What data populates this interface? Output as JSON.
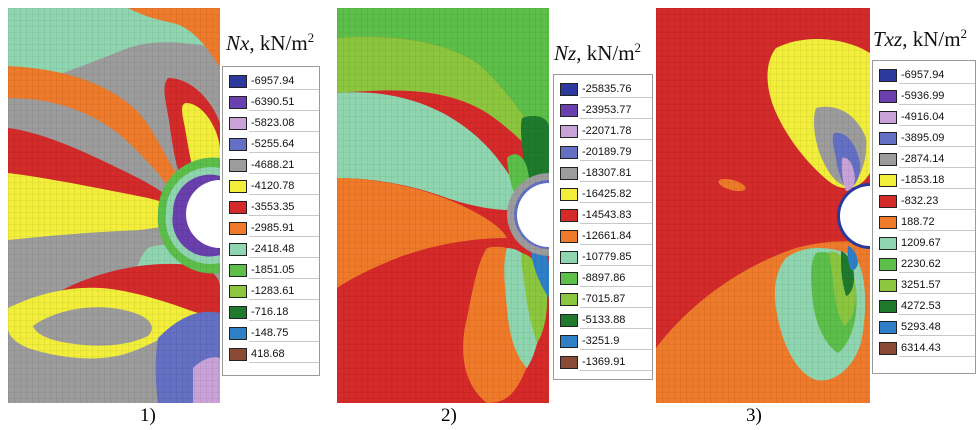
{
  "panels": [
    {
      "caption": "1)",
      "title_symbol": "Nx",
      "title_unit": ", kN/m",
      "title_exp": "2",
      "legend": [
        {
          "value": "-6957.94",
          "color": "#2b3a9c"
        },
        {
          "value": "-6390.51",
          "color": "#6a3fae"
        },
        {
          "value": "-5823.08",
          "color": "#c9a2d8"
        },
        {
          "value": "-5255.64",
          "color": "#6470c4"
        },
        {
          "value": "-4688.21",
          "color": "#9c9c9c"
        },
        {
          "value": "-4120.78",
          "color": "#f2ee3a"
        },
        {
          "value": "-3553.35",
          "color": "#d42a2a"
        },
        {
          "value": "-2985.91",
          "color": "#ee7a2a"
        },
        {
          "value": "-2418.48",
          "color": "#8fd6b0"
        },
        {
          "value": "-1851.05",
          "color": "#5cbf4a"
        },
        {
          "value": "-1283.61",
          "color": "#8cc63f"
        },
        {
          "value": "-716.18",
          "color": "#1f7a2e"
        },
        {
          "value": "-148.75",
          "color": "#2f7fc7"
        },
        {
          "value": "418.68",
          "color": "#8b4a35"
        }
      ]
    },
    {
      "caption": "2)",
      "title_symbol": "Nz",
      "title_unit": ", kN/m",
      "title_exp": "2",
      "legend": [
        {
          "value": "-25835.76",
          "color": "#2b3a9c"
        },
        {
          "value": "-23953.77",
          "color": "#6a3fae"
        },
        {
          "value": "-22071.78",
          "color": "#c9a2d8"
        },
        {
          "value": "-20189.79",
          "color": "#6470c4"
        },
        {
          "value": "-18307.81",
          "color": "#9c9c9c"
        },
        {
          "value": "-16425.82",
          "color": "#f2ee3a"
        },
        {
          "value": "-14543.83",
          "color": "#d42a2a"
        },
        {
          "value": "-12661.84",
          "color": "#ee7a2a"
        },
        {
          "value": "-10779.85",
          "color": "#8fd6b0"
        },
        {
          "value": "-8897.86",
          "color": "#5cbf4a"
        },
        {
          "value": "-7015.87",
          "color": "#8cc63f"
        },
        {
          "value": "-5133.88",
          "color": "#1f7a2e"
        },
        {
          "value": "-3251.9",
          "color": "#2f7fc7"
        },
        {
          "value": "-1369.91",
          "color": "#8b4a35"
        }
      ]
    },
    {
      "caption": "3)",
      "title_symbol": "Txz",
      "title_unit": ", kN/m",
      "title_exp": "2",
      "legend": [
        {
          "value": "-6957.94",
          "color": "#2b3a9c"
        },
        {
          "value": "-5936.99",
          "color": "#6a3fae"
        },
        {
          "value": "-4916.04",
          "color": "#c9a2d8"
        },
        {
          "value": "-3895.09",
          "color": "#6470c4"
        },
        {
          "value": "-2874.14",
          "color": "#9c9c9c"
        },
        {
          "value": "-1853.18",
          "color": "#f2ee3a"
        },
        {
          "value": "-832.23",
          "color": "#d42a2a"
        },
        {
          "value": "188.72",
          "color": "#ee7a2a"
        },
        {
          "value": "1209.67",
          "color": "#8fd6b0"
        },
        {
          "value": "2230.62",
          "color": "#5cbf4a"
        },
        {
          "value": "3251.57",
          "color": "#8cc63f"
        },
        {
          "value": "4272.53",
          "color": "#1f7a2e"
        },
        {
          "value": "5293.48",
          "color": "#2f7fc7"
        },
        {
          "value": "6314.43",
          "color": "#8b4a35"
        }
      ]
    }
  ]
}
